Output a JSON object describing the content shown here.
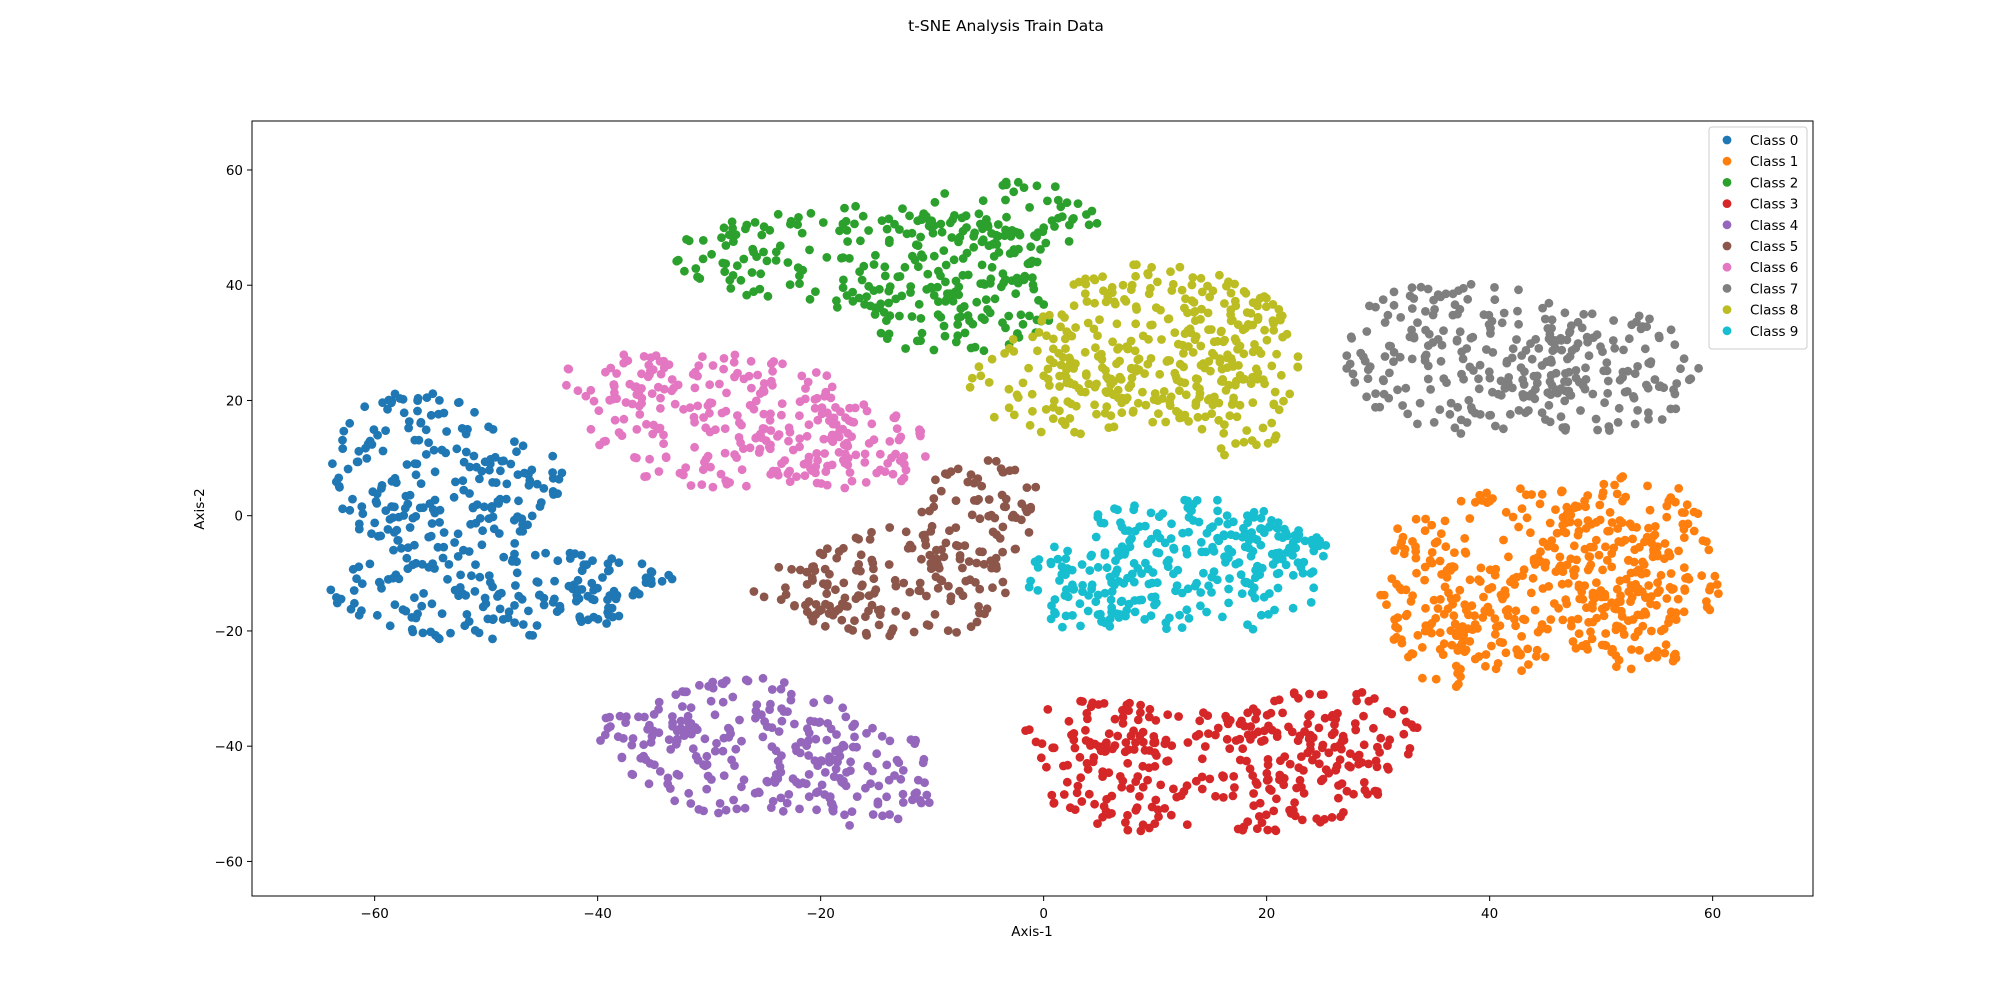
{
  "chart_data": {
    "type": "scatter",
    "title": "t-SNE Analysis Train Data",
    "xlabel": "Axis-1",
    "ylabel": "Axis-2",
    "xlim": [
      -71,
      69
    ],
    "ylim": [
      -66,
      68.5
    ],
    "xticks": [
      -60,
      -40,
      -20,
      0,
      20,
      40,
      60
    ],
    "yticks": [
      -60,
      -40,
      -20,
      0,
      20,
      40,
      60
    ],
    "xtick_labels": [
      "−60",
      "−40",
      "−20",
      "0",
      "20",
      "40",
      "60"
    ],
    "ytick_labels": [
      "−60",
      "−40",
      "−20",
      "0",
      "20",
      "40",
      "60"
    ],
    "grid": false,
    "legend_position": "top-right",
    "series": [
      {
        "name": "Class 0",
        "color": "#1f77b4",
        "clusters": [
          {
            "x": -56,
            "y": 8,
            "rx": 8,
            "ry": 14
          },
          {
            "x": -48,
            "y": 5,
            "rx": 5,
            "ry": 9
          },
          {
            "x": -50,
            "y": -13,
            "rx": 14,
            "ry": 9
          },
          {
            "x": -38,
            "y": -12,
            "rx": 5,
            "ry": 5
          }
        ]
      },
      {
        "name": "Class 1",
        "color": "#ff7f0e",
        "clusters": [
          {
            "x": 43,
            "y": -10,
            "rx": 14,
            "ry": 15
          },
          {
            "x": 53,
            "y": -10,
            "rx": 8,
            "ry": 17
          },
          {
            "x": 38,
            "y": -22,
            "rx": 7,
            "ry": 8
          }
        ]
      },
      {
        "name": "Class 2",
        "color": "#2ca02c",
        "clusters": [
          {
            "x": -16,
            "y": 45,
            "rx": 17,
            "ry": 9
          },
          {
            "x": -8,
            "y": 36,
            "rx": 9,
            "ry": 8
          },
          {
            "x": -3,
            "y": 52,
            "rx": 8,
            "ry": 6
          }
        ]
      },
      {
        "name": "Class 3",
        "color": "#d62728",
        "clusters": [
          {
            "x": 15,
            "y": -45,
            "rx": 16,
            "ry": 11
          },
          {
            "x": 25,
            "y": -38,
            "rx": 9,
            "ry": 8
          },
          {
            "x": 5,
            "y": -37,
            "rx": 7,
            "ry": 5
          }
        ]
      },
      {
        "name": "Class 4",
        "color": "#9467bd",
        "clusters": [
          {
            "x": -27,
            "y": -40,
            "rx": 11,
            "ry": 12
          },
          {
            "x": -17,
            "y": -45,
            "rx": 8,
            "ry": 9
          },
          {
            "x": -36,
            "y": -38,
            "rx": 5,
            "ry": 4
          }
        ]
      },
      {
        "name": "Class 5",
        "color": "#8c564b",
        "clusters": [
          {
            "x": -13,
            "y": -12,
            "rx": 10,
            "ry": 10
          },
          {
            "x": -6,
            "y": 1,
            "rx": 6,
            "ry": 9
          },
          {
            "x": -21,
            "y": -13,
            "rx": 5,
            "ry": 5
          }
        ]
      },
      {
        "name": "Class 6",
        "color": "#e377c2",
        "clusters": [
          {
            "x": -28,
            "y": 16,
            "rx": 13,
            "ry": 12
          },
          {
            "x": -18,
            "y": 12,
            "rx": 8,
            "ry": 8
          },
          {
            "x": -38,
            "y": 24,
            "rx": 5,
            "ry": 5
          }
        ]
      },
      {
        "name": "Class 7",
        "color": "#7f7f7f",
        "clusters": [
          {
            "x": 38,
            "y": 28,
            "rx": 11,
            "ry": 14
          },
          {
            "x": 50,
            "y": 25,
            "rx": 9,
            "ry": 11
          }
        ]
      },
      {
        "name": "Class 8",
        "color": "#bcbd22",
        "clusters": [
          {
            "x": 10,
            "y": 30,
            "rx": 11,
            "ry": 14
          },
          {
            "x": 2,
            "y": 23,
            "rx": 9,
            "ry": 9
          },
          {
            "x": 17,
            "y": 25,
            "rx": 6,
            "ry": 15
          }
        ]
      },
      {
        "name": "Class 9",
        "color": "#17becf",
        "clusters": [
          {
            "x": 13,
            "y": -9,
            "rx": 13,
            "ry": 12
          },
          {
            "x": 4,
            "y": -12,
            "rx": 6,
            "ry": 8
          },
          {
            "x": 20,
            "y": -6,
            "rx": 6,
            "ry": 7
          }
        ]
      }
    ]
  }
}
